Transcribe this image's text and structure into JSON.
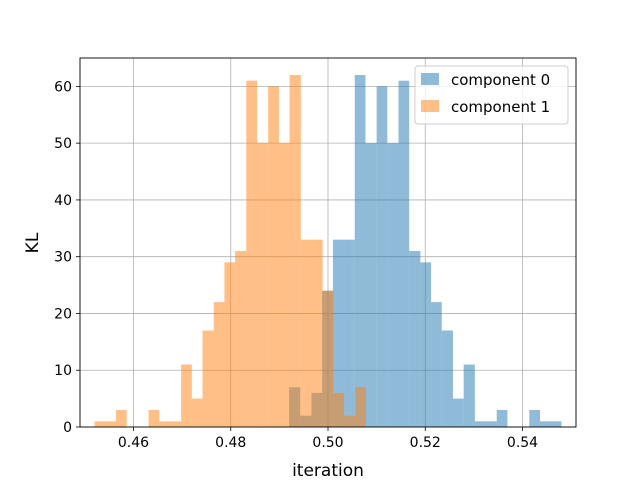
{
  "chart_data": {
    "type": "bar",
    "subtype": "overlapping-histogram",
    "title": "",
    "xlabel": "iteration",
    "ylabel": "KL",
    "xlim": [
      0.449,
      0.551
    ],
    "ylim": [
      0,
      65
    ],
    "xticks": [
      0.46,
      0.48,
      0.5,
      0.52,
      0.54
    ],
    "xtick_labels": [
      "0.46",
      "0.48",
      "0.50",
      "0.52",
      "0.54"
    ],
    "yticks": [
      0,
      10,
      20,
      30,
      40,
      50,
      60
    ],
    "ytick_labels": [
      "0",
      "10",
      "20",
      "30",
      "40",
      "50",
      "60"
    ],
    "grid": true,
    "legend_position": "top-right",
    "opacity": 0.5,
    "series": [
      {
        "name": "component 0",
        "color": "#1f77b4",
        "bins": [
          {
            "x0": 0.492,
            "x1": 0.4943,
            "value": 7
          },
          {
            "x0": 0.4943,
            "x1": 0.4966,
            "value": 2
          },
          {
            "x0": 0.4966,
            "x1": 0.4988,
            "value": 6
          },
          {
            "x0": 0.4988,
            "x1": 0.501,
            "value": 24
          },
          {
            "x0": 0.501,
            "x1": 0.5033,
            "value": 33
          },
          {
            "x0": 0.5033,
            "x1": 0.5055,
            "value": 33
          },
          {
            "x0": 0.5055,
            "x1": 0.5077,
            "value": 62
          },
          {
            "x0": 0.5077,
            "x1": 0.51,
            "value": 50
          },
          {
            "x0": 0.51,
            "x1": 0.5122,
            "value": 60
          },
          {
            "x0": 0.5122,
            "x1": 0.5145,
            "value": 50
          },
          {
            "x0": 0.5145,
            "x1": 0.5167,
            "value": 61
          },
          {
            "x0": 0.5167,
            "x1": 0.519,
            "value": 31
          },
          {
            "x0": 0.519,
            "x1": 0.5212,
            "value": 29
          },
          {
            "x0": 0.5212,
            "x1": 0.5234,
            "value": 22
          },
          {
            "x0": 0.5234,
            "x1": 0.5257,
            "value": 17
          },
          {
            "x0": 0.5257,
            "x1": 0.5279,
            "value": 5
          },
          {
            "x0": 0.5279,
            "x1": 0.5302,
            "value": 11
          },
          {
            "x0": 0.5302,
            "x1": 0.5324,
            "value": 1
          },
          {
            "x0": 0.5324,
            "x1": 0.5347,
            "value": 1
          },
          {
            "x0": 0.5347,
            "x1": 0.5369,
            "value": 3
          },
          {
            "x0": 0.5369,
            "x1": 0.5392,
            "value": 0
          },
          {
            "x0": 0.5392,
            "x1": 0.5414,
            "value": 0
          },
          {
            "x0": 0.5414,
            "x1": 0.5436,
            "value": 3
          },
          {
            "x0": 0.5436,
            "x1": 0.548,
            "value": 1
          }
        ]
      },
      {
        "name": "component 1",
        "color": "#ff7f0e",
        "bins": [
          {
            "x0": 0.452,
            "x1": 0.4564,
            "value": 1
          },
          {
            "x0": 0.4564,
            "x1": 0.4586,
            "value": 3
          },
          {
            "x0": 0.4586,
            "x1": 0.4631,
            "value": 0
          },
          {
            "x0": 0.4631,
            "x1": 0.4653,
            "value": 3
          },
          {
            "x0": 0.4653,
            "x1": 0.4698,
            "value": 1
          },
          {
            "x0": 0.4698,
            "x1": 0.472,
            "value": 11
          },
          {
            "x0": 0.472,
            "x1": 0.4742,
            "value": 5
          },
          {
            "x0": 0.4742,
            "x1": 0.4765,
            "value": 17
          },
          {
            "x0": 0.4765,
            "x1": 0.4787,
            "value": 22
          },
          {
            "x0": 0.4787,
            "x1": 0.4809,
            "value": 29
          },
          {
            "x0": 0.4809,
            "x1": 0.4832,
            "value": 31
          },
          {
            "x0": 0.4832,
            "x1": 0.4854,
            "value": 61
          },
          {
            "x0": 0.4854,
            "x1": 0.4877,
            "value": 50
          },
          {
            "x0": 0.4877,
            "x1": 0.4899,
            "value": 60
          },
          {
            "x0": 0.4899,
            "x1": 0.4921,
            "value": 50
          },
          {
            "x0": 0.4921,
            "x1": 0.4944,
            "value": 62
          },
          {
            "x0": 0.4944,
            "x1": 0.4966,
            "value": 33
          },
          {
            "x0": 0.4966,
            "x1": 0.4989,
            "value": 33
          },
          {
            "x0": 0.4989,
            "x1": 0.5011,
            "value": 24
          },
          {
            "x0": 0.5011,
            "x1": 0.5033,
            "value": 6
          },
          {
            "x0": 0.5033,
            "x1": 0.5056,
            "value": 2
          },
          {
            "x0": 0.5056,
            "x1": 0.5078,
            "value": 7
          }
        ]
      }
    ]
  }
}
